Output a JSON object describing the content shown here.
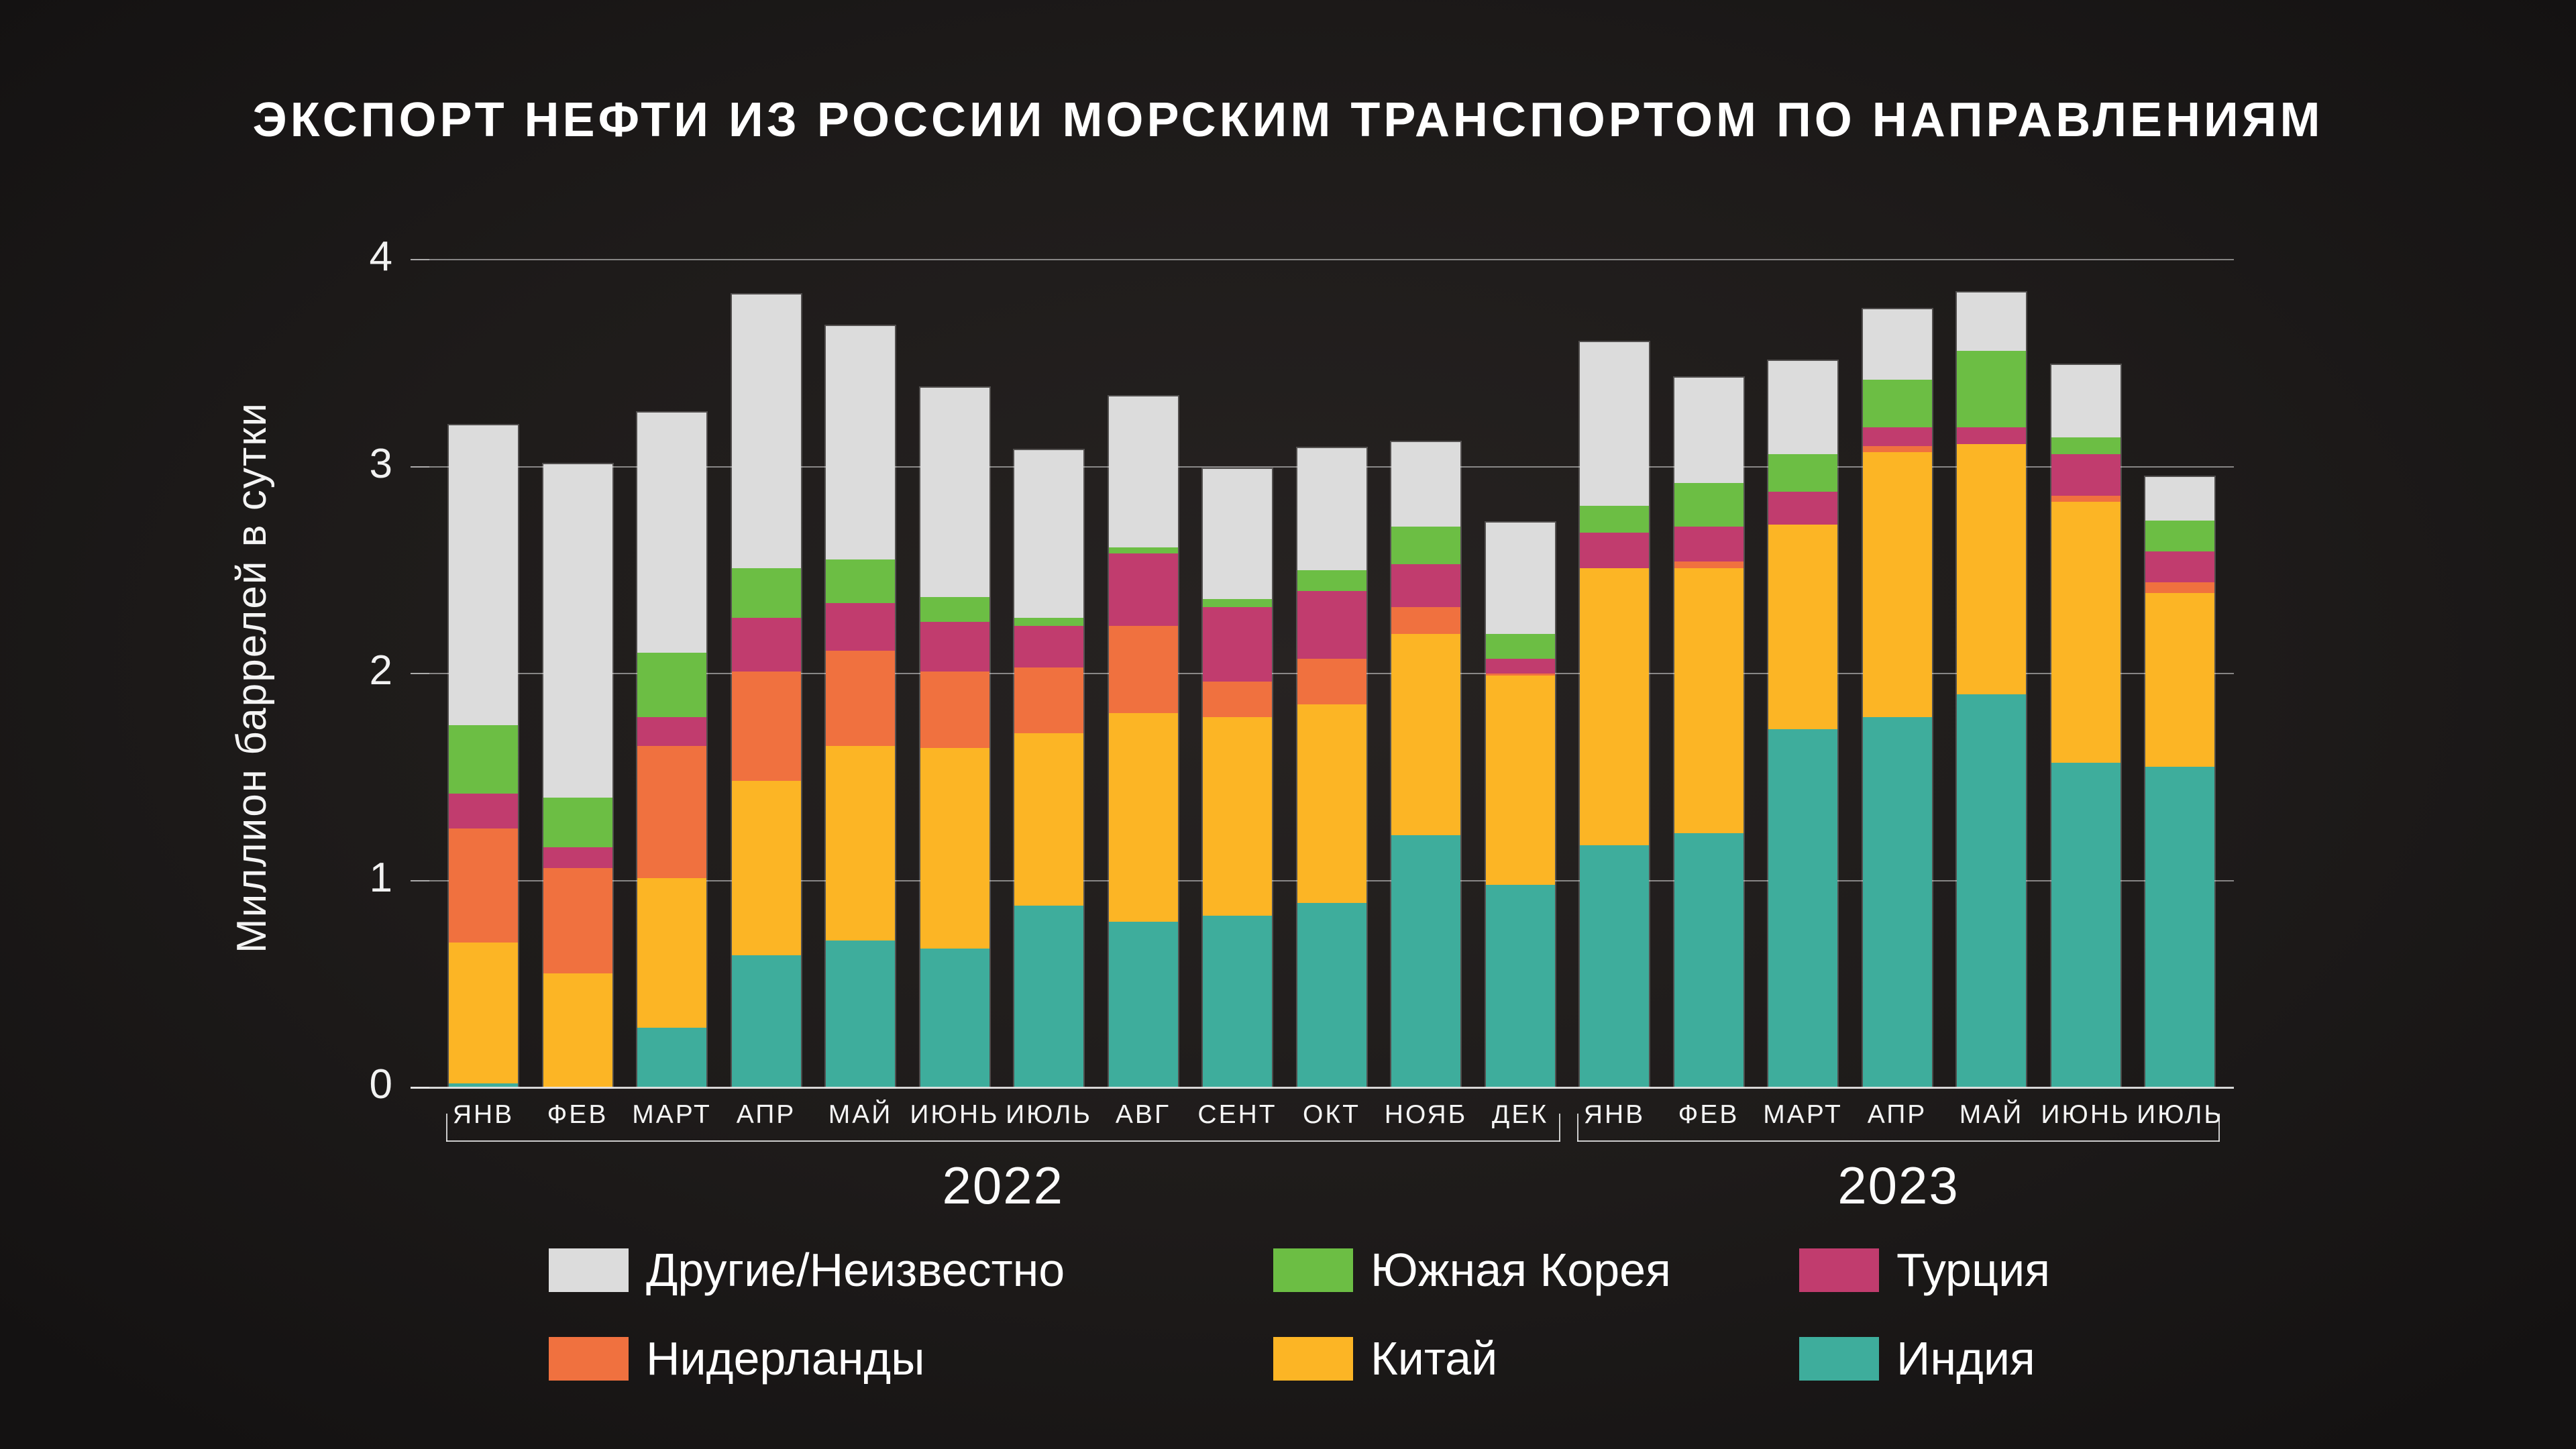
{
  "header": {
    "title": "ЭКСПОРТ НЕФТИ ИЗ РОССИИ МОРСКИМ ТРАНСПОРТОМ ПО НАПРАВЛЕНИЯМ"
  },
  "y_axis": {
    "label": "Миллион баррелей в сутки",
    "ticks": [
      "0",
      "1",
      "2",
      "3",
      "4"
    ]
  },
  "x_axis": {
    "year_groups": [
      {
        "label": "2022",
        "start_index": 0,
        "end_index": 11
      },
      {
        "label": "2023",
        "start_index": 12,
        "end_index": 18
      }
    ]
  },
  "legend": {
    "items": [
      {
        "label": "Другие/Неизвестно",
        "color": "#dcdcdc"
      },
      {
        "label": "Южная Корея",
        "color": "#6cbe44"
      },
      {
        "label": "Турция",
        "color": "#c13c6e"
      },
      {
        "label": "Нидерланды",
        "color": "#f0713f"
      },
      {
        "label": "Китай",
        "color": "#fcb525"
      },
      {
        "label": "Индия",
        "color": "#3ead9c"
      }
    ]
  },
  "chart_data": {
    "type": "bar",
    "subtype": "stacked-vertical",
    "title": "ЭКСПОРТ НЕФТИ ИЗ РОССИИ МОРСКИМ ТРАНСПОРТОМ ПО НАПРАВЛЕНИЯМ",
    "xlabel": "",
    "ylabel": "Миллион баррелей в сутки",
    "ylim": [
      0,
      4
    ],
    "yticks": [
      0,
      1,
      2,
      3,
      4
    ],
    "grid": true,
    "legend_position": "bottom",
    "categories": [
      "ЯНВ",
      "ФЕВ",
      "МАРТ",
      "АПР",
      "МАЙ",
      "ИЮНЬ",
      "ИЮЛЬ",
      "АВГ",
      "СЕНТ",
      "ОКТ",
      "НОЯБ",
      "ДЕК",
      "ЯНВ",
      "ФЕВ",
      "МАРТ",
      "АПР",
      "МАЙ",
      "ИЮНЬ",
      "ИЮЛЬ"
    ],
    "stack_order_note": "series listed bottom to top of stack",
    "series": [
      {
        "name": "Индия",
        "color": "#3ead9c",
        "values": [
          0.02,
          0.0,
          0.29,
          0.64,
          0.71,
          0.67,
          0.88,
          0.8,
          0.83,
          0.89,
          1.22,
          0.98,
          1.17,
          1.23,
          1.73,
          1.79,
          1.9,
          1.57,
          1.55
        ]
      },
      {
        "name": "Китай",
        "color": "#fcb525",
        "values": [
          0.68,
          0.55,
          0.72,
          0.84,
          0.94,
          0.97,
          0.83,
          1.01,
          0.96,
          0.96,
          0.97,
          1.01,
          1.34,
          1.28,
          0.99,
          1.28,
          1.21,
          1.26,
          0.84
        ]
      },
      {
        "name": "Нидерланды",
        "color": "#f0713f",
        "values": [
          0.55,
          0.51,
          0.64,
          0.53,
          0.46,
          0.37,
          0.32,
          0.42,
          0.17,
          0.22,
          0.13,
          0.01,
          0.0,
          0.03,
          0.0,
          0.03,
          0.0,
          0.03,
          0.05
        ]
      },
      {
        "name": "Турция",
        "color": "#c13c6e",
        "values": [
          0.17,
          0.1,
          0.14,
          0.26,
          0.23,
          0.24,
          0.2,
          0.35,
          0.36,
          0.33,
          0.21,
          0.07,
          0.17,
          0.17,
          0.16,
          0.09,
          0.08,
          0.2,
          0.15
        ]
      },
      {
        "name": "Южная Корея",
        "color": "#6cbe44",
        "values": [
          0.33,
          0.24,
          0.31,
          0.24,
          0.21,
          0.12,
          0.04,
          0.03,
          0.04,
          0.1,
          0.18,
          0.12,
          0.13,
          0.21,
          0.18,
          0.23,
          0.37,
          0.08,
          0.15
        ]
      },
      {
        "name": "Другие/Неизвестно",
        "color": "#dcdcdc",
        "values": [
          1.45,
          1.61,
          1.16,
          1.32,
          1.13,
          1.01,
          0.81,
          0.73,
          0.63,
          0.59,
          0.41,
          0.54,
          0.79,
          0.51,
          0.45,
          0.34,
          0.28,
          0.35,
          0.21
        ]
      }
    ]
  }
}
